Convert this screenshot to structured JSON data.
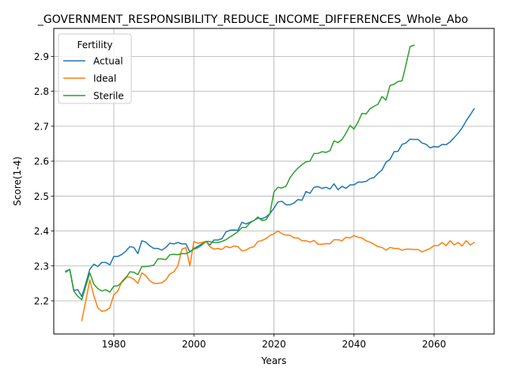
{
  "chart_data": {
    "type": "line",
    "title": "_GOVERNMENT_RESPONSIBILITY_REDUCE_INCOME_DIFFERENCES_Whole_Abo",
    "xlabel": "Years",
    "ylabel": "Score(1-4)",
    "xlim": [
      1965,
      2075
    ],
    "ylim": [
      2.105,
      2.98
    ],
    "xticks": [
      1980,
      2000,
      2020,
      2040,
      2060
    ],
    "yticks": [
      2.2,
      2.3,
      2.4,
      2.5,
      2.6,
      2.7,
      2.8,
      2.9
    ],
    "grid": true,
    "legend": {
      "title": "Fertility",
      "position": "upper-left"
    },
    "series": [
      {
        "name": "Actual",
        "color": "#1f77b4",
        "points": [
          [
            1968,
            2.285
          ],
          [
            1969,
            2.29
          ],
          [
            1970,
            2.23
          ],
          [
            1971,
            2.232
          ],
          [
            1972,
            2.212
          ],
          [
            1973,
            2.25
          ],
          [
            1974,
            2.29
          ],
          [
            1975,
            2.305
          ],
          [
            1976,
            2.298
          ],
          [
            1977,
            2.31
          ],
          [
            1978,
            2.31
          ],
          [
            1979,
            2.303
          ],
          [
            1980,
            2.327
          ],
          [
            1981,
            2.327
          ],
          [
            1982,
            2.333
          ],
          [
            1983,
            2.342
          ],
          [
            1984,
            2.355
          ],
          [
            1985,
            2.353
          ],
          [
            1986,
            2.335
          ],
          [
            1987,
            2.372
          ],
          [
            1988,
            2.368
          ],
          [
            1989,
            2.357
          ],
          [
            1990,
            2.35
          ],
          [
            1991,
            2.35
          ],
          [
            1992,
            2.345
          ],
          [
            1993,
            2.353
          ],
          [
            1994,
            2.365
          ],
          [
            1995,
            2.363
          ],
          [
            1996,
            2.367
          ],
          [
            1997,
            2.363
          ],
          [
            1998,
            2.363
          ],
          [
            1999,
            2.34
          ],
          [
            2000,
            2.35
          ],
          [
            2001,
            2.356
          ],
          [
            2002,
            2.363
          ],
          [
            2003,
            2.37
          ],
          [
            2004,
            2.36
          ],
          [
            2005,
            2.374
          ],
          [
            2006,
            2.374
          ],
          [
            2007,
            2.378
          ],
          [
            2008,
            2.397
          ],
          [
            2009,
            2.402
          ],
          [
            2010,
            2.403
          ],
          [
            2011,
            2.402
          ],
          [
            2012,
            2.425
          ],
          [
            2013,
            2.42
          ],
          [
            2014,
            2.425
          ],
          [
            2015,
            2.43
          ],
          [
            2016,
            2.437
          ],
          [
            2017,
            2.435
          ],
          [
            2018,
            2.44
          ],
          [
            2019,
            2.45
          ],
          [
            2020,
            2.465
          ],
          [
            2021,
            2.483
          ],
          [
            2022,
            2.485
          ],
          [
            2023,
            2.475
          ],
          [
            2024,
            2.475
          ],
          [
            2025,
            2.48
          ],
          [
            2026,
            2.49
          ],
          [
            2027,
            2.488
          ],
          [
            2028,
            2.513
          ],
          [
            2029,
            2.508
          ],
          [
            2030,
            2.525
          ],
          [
            2031,
            2.527
          ],
          [
            2032,
            2.522
          ],
          [
            2033,
            2.525
          ],
          [
            2034,
            2.52
          ],
          [
            2035,
            2.535
          ],
          [
            2036,
            2.518
          ],
          [
            2037,
            2.528
          ],
          [
            2038,
            2.522
          ],
          [
            2039,
            2.532
          ],
          [
            2040,
            2.532
          ],
          [
            2041,
            2.54
          ],
          [
            2042,
            2.54
          ],
          [
            2043,
            2.542
          ],
          [
            2044,
            2.55
          ],
          [
            2045,
            2.553
          ],
          [
            2046,
            2.565
          ],
          [
            2047,
            2.575
          ],
          [
            2048,
            2.597
          ],
          [
            2049,
            2.605
          ],
          [
            2050,
            2.627
          ],
          [
            2051,
            2.628
          ],
          [
            2052,
            2.648
          ],
          [
            2053,
            2.652
          ],
          [
            2054,
            2.663
          ],
          [
            2055,
            2.662
          ],
          [
            2056,
            2.662
          ],
          [
            2057,
            2.652
          ],
          [
            2058,
            2.648
          ],
          [
            2059,
            2.638
          ],
          [
            2060,
            2.642
          ],
          [
            2061,
            2.64
          ],
          [
            2062,
            2.648
          ],
          [
            2063,
            2.647
          ],
          [
            2064,
            2.655
          ],
          [
            2065,
            2.667
          ],
          [
            2066,
            2.68
          ],
          [
            2067,
            2.695
          ],
          [
            2068,
            2.715
          ],
          [
            2069,
            2.732
          ],
          [
            2070,
            2.75
          ]
        ]
      },
      {
        "name": "Ideal",
        "color": "#ff7f0e",
        "points": [
          [
            1972,
            2.143
          ],
          [
            1973,
            2.2
          ],
          [
            1974,
            2.26
          ],
          [
            1975,
            2.215
          ],
          [
            1976,
            2.18
          ],
          [
            1977,
            2.17
          ],
          [
            1978,
            2.172
          ],
          [
            1979,
            2.18
          ],
          [
            1980,
            2.217
          ],
          [
            1981,
            2.228
          ],
          [
            1982,
            2.255
          ],
          [
            1983,
            2.268
          ],
          [
            1984,
            2.268
          ],
          [
            1985,
            2.262
          ],
          [
            1986,
            2.25
          ],
          [
            1987,
            2.28
          ],
          [
            1988,
            2.272
          ],
          [
            1989,
            2.257
          ],
          [
            1990,
            2.25
          ],
          [
            1991,
            2.25
          ],
          [
            1992,
            2.252
          ],
          [
            1993,
            2.26
          ],
          [
            1994,
            2.277
          ],
          [
            1995,
            2.283
          ],
          [
            1996,
            2.3
          ],
          [
            1997,
            2.348
          ],
          [
            1998,
            2.352
          ],
          [
            1999,
            2.3
          ],
          [
            2000,
            2.37
          ],
          [
            2001,
            2.365
          ],
          [
            2002,
            2.367
          ],
          [
            2003,
            2.37
          ],
          [
            2004,
            2.355
          ],
          [
            2005,
            2.348
          ],
          [
            2006,
            2.35
          ],
          [
            2007,
            2.347
          ],
          [
            2008,
            2.356
          ],
          [
            2009,
            2.352
          ],
          [
            2010,
            2.357
          ],
          [
            2011,
            2.355
          ],
          [
            2012,
            2.343
          ],
          [
            2013,
            2.345
          ],
          [
            2014,
            2.352
          ],
          [
            2015,
            2.355
          ],
          [
            2016,
            2.37
          ],
          [
            2017,
            2.373
          ],
          [
            2018,
            2.378
          ],
          [
            2019,
            2.387
          ],
          [
            2020,
            2.392
          ],
          [
            2021,
            2.4
          ],
          [
            2022,
            2.392
          ],
          [
            2023,
            2.388
          ],
          [
            2024,
            2.388
          ],
          [
            2025,
            2.38
          ],
          [
            2026,
            2.38
          ],
          [
            2027,
            2.372
          ],
          [
            2028,
            2.372
          ],
          [
            2029,
            2.368
          ],
          [
            2030,
            2.373
          ],
          [
            2031,
            2.362
          ],
          [
            2032,
            2.362
          ],
          [
            2033,
            2.364
          ],
          [
            2034,
            2.363
          ],
          [
            2035,
            2.375
          ],
          [
            2036,
            2.375
          ],
          [
            2037,
            2.372
          ],
          [
            2038,
            2.382
          ],
          [
            2039,
            2.38
          ],
          [
            2040,
            2.387
          ],
          [
            2041,
            2.382
          ],
          [
            2042,
            2.38
          ],
          [
            2043,
            2.372
          ],
          [
            2044,
            2.368
          ],
          [
            2045,
            2.362
          ],
          [
            2046,
            2.355
          ],
          [
            2047,
            2.353
          ],
          [
            2048,
            2.345
          ],
          [
            2049,
            2.353
          ],
          [
            2050,
            2.35
          ],
          [
            2051,
            2.35
          ],
          [
            2052,
            2.345
          ],
          [
            2053,
            2.348
          ],
          [
            2054,
            2.348
          ],
          [
            2055,
            2.347
          ],
          [
            2056,
            2.347
          ],
          [
            2057,
            2.34
          ],
          [
            2058,
            2.345
          ],
          [
            2059,
            2.35
          ],
          [
            2060,
            2.358
          ],
          [
            2061,
            2.358
          ],
          [
            2062,
            2.367
          ],
          [
            2063,
            2.358
          ],
          [
            2064,
            2.372
          ],
          [
            2065,
            2.36
          ],
          [
            2066,
            2.367
          ],
          [
            2067,
            2.357
          ],
          [
            2068,
            2.372
          ],
          [
            2069,
            2.36
          ],
          [
            2070,
            2.367
          ]
        ]
      },
      {
        "name": "Sterile",
        "color": "#2ca02c",
        "points": [
          [
            1968,
            2.282
          ],
          [
            1969,
            2.29
          ],
          [
            1970,
            2.228
          ],
          [
            1971,
            2.213
          ],
          [
            1972,
            2.203
          ],
          [
            1973,
            2.242
          ],
          [
            1974,
            2.28
          ],
          [
            1975,
            2.248
          ],
          [
            1976,
            2.235
          ],
          [
            1977,
            2.228
          ],
          [
            1978,
            2.232
          ],
          [
            1979,
            2.225
          ],
          [
            1980,
            2.242
          ],
          [
            1981,
            2.243
          ],
          [
            1982,
            2.253
          ],
          [
            1983,
            2.265
          ],
          [
            1984,
            2.283
          ],
          [
            1985,
            2.282
          ],
          [
            1986,
            2.275
          ],
          [
            1987,
            2.298
          ],
          [
            1988,
            2.298
          ],
          [
            1989,
            2.3
          ],
          [
            1990,
            2.302
          ],
          [
            1991,
            2.32
          ],
          [
            1992,
            2.32
          ],
          [
            1993,
            2.318
          ],
          [
            1994,
            2.332
          ],
          [
            1995,
            2.333
          ],
          [
            1996,
            2.332
          ],
          [
            1997,
            2.335
          ],
          [
            1998,
            2.335
          ],
          [
            1999,
            2.34
          ],
          [
            2000,
            2.348
          ],
          [
            2001,
            2.352
          ],
          [
            2002,
            2.36
          ],
          [
            2003,
            2.37
          ],
          [
            2004,
            2.37
          ],
          [
            2005,
            2.367
          ],
          [
            2006,
            2.367
          ],
          [
            2007,
            2.37
          ],
          [
            2008,
            2.375
          ],
          [
            2009,
            2.383
          ],
          [
            2010,
            2.39
          ],
          [
            2011,
            2.398
          ],
          [
            2012,
            2.41
          ],
          [
            2013,
            2.41
          ],
          [
            2014,
            2.423
          ],
          [
            2015,
            2.43
          ],
          [
            2016,
            2.44
          ],
          [
            2017,
            2.43
          ],
          [
            2018,
            2.432
          ],
          [
            2019,
            2.45
          ],
          [
            2020,
            2.512
          ],
          [
            2021,
            2.525
          ],
          [
            2022,
            2.523
          ],
          [
            2023,
            2.528
          ],
          [
            2024,
            2.552
          ],
          [
            2025,
            2.568
          ],
          [
            2026,
            2.58
          ],
          [
            2027,
            2.59
          ],
          [
            2028,
            2.598
          ],
          [
            2029,
            2.6
          ],
          [
            2030,
            2.622
          ],
          [
            2031,
            2.622
          ],
          [
            2032,
            2.627
          ],
          [
            2033,
            2.625
          ],
          [
            2034,
            2.63
          ],
          [
            2035,
            2.658
          ],
          [
            2036,
            2.653
          ],
          [
            2037,
            2.662
          ],
          [
            2038,
            2.68
          ],
          [
            2039,
            2.702
          ],
          [
            2040,
            2.692
          ],
          [
            2041,
            2.712
          ],
          [
            2042,
            2.737
          ],
          [
            2043,
            2.735
          ],
          [
            2044,
            2.75
          ],
          [
            2045,
            2.757
          ],
          [
            2046,
            2.763
          ],
          [
            2047,
            2.785
          ],
          [
            2048,
            2.775
          ],
          [
            2049,
            2.817
          ],
          [
            2050,
            2.82
          ],
          [
            2051,
            2.828
          ],
          [
            2052,
            2.83
          ],
          [
            2053,
            2.877
          ],
          [
            2054,
            2.928
          ],
          [
            2055,
            2.932
          ]
        ]
      }
    ]
  }
}
